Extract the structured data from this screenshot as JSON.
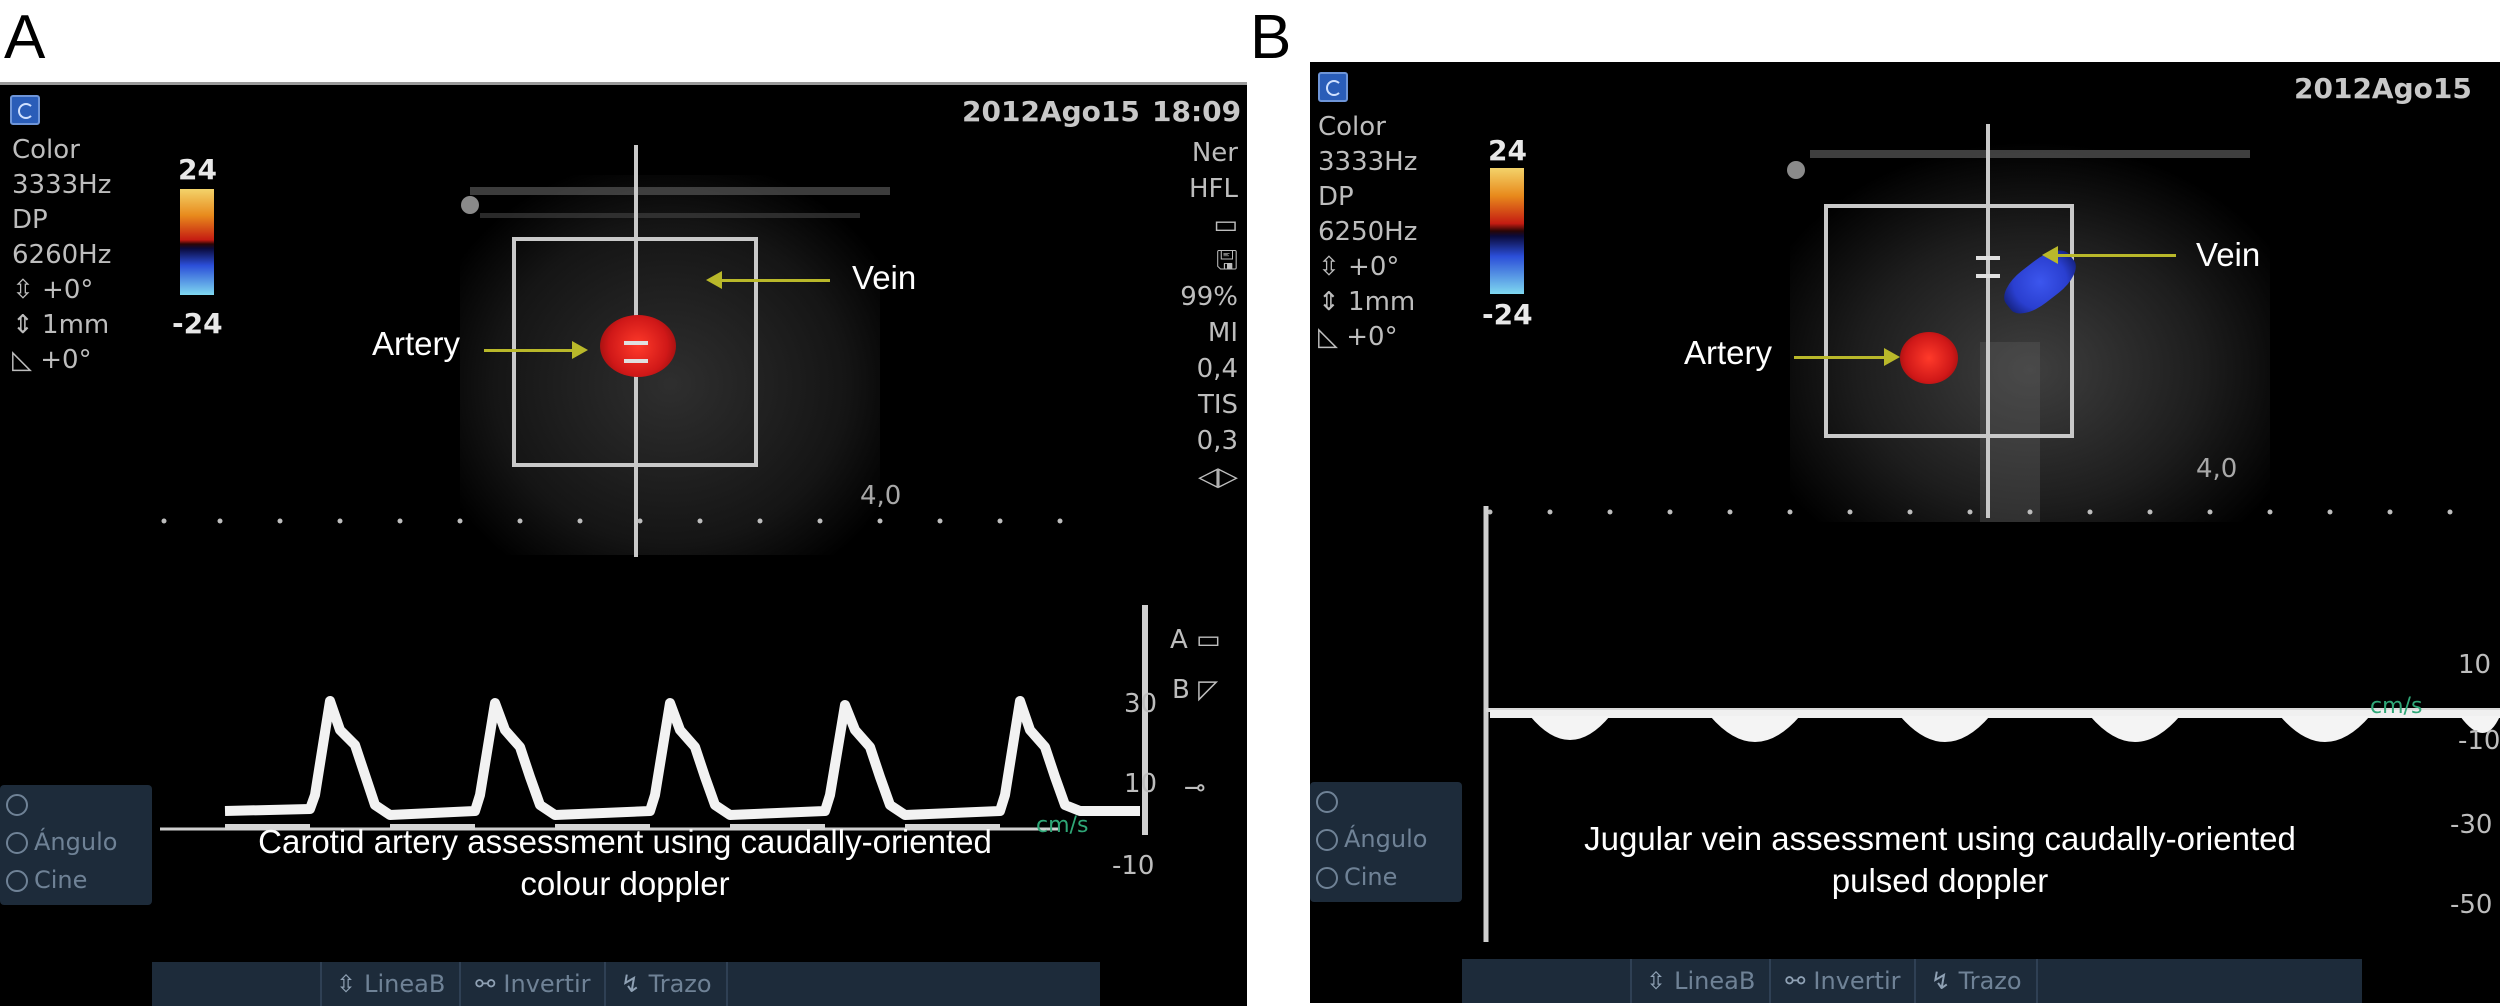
{
  "panels": [
    {
      "letter": "A",
      "date": "2012Ago15",
      "time": "18:09",
      "settings": [
        "Color",
        "3333Hz",
        "DP",
        "6260Hz",
        "⇳ +0°",
        "⇕ 1mm",
        "◺ +0°"
      ],
      "scale_max": "24",
      "scale_min": "-24",
      "right_info": [
        "Ner",
        "HFL",
        "▭",
        "🖫",
        "99%",
        "MI",
        "0,4",
        "TIS",
        "0,3",
        "◁▷"
      ],
      "depth": "4,0",
      "label_artery": "Artery",
      "label_vein": "Vein",
      "velocity_ticks": [
        "30",
        "10",
        "-10"
      ],
      "velocity_unit": "cm/s",
      "side_icons": [
        "A ▭",
        "B ◸",
        "⊸"
      ],
      "menu": [
        "",
        "Ángulo",
        "Cine"
      ],
      "caption_line1": "Carotid artery assessment using caudally-oriented",
      "caption_line2": "colour doppler",
      "bottom_bar": [
        {
          "icon": "⇳",
          "label": "LineaB"
        },
        {
          "icon": "⚯",
          "label": "Invertir"
        },
        {
          "icon": "↯",
          "label": "Trazo"
        }
      ]
    },
    {
      "letter": "B",
      "date": "2012Ago15",
      "settings": [
        "Color",
        "3333Hz",
        "DP",
        "6250Hz",
        "⇳ +0°",
        "⇕ 1mm",
        "◺ +0°"
      ],
      "scale_max": "24",
      "scale_min": "-24",
      "depth": "4,0",
      "label_artery": "Artery",
      "label_vein": "Vein",
      "velocity_ticks": [
        "10",
        "-10",
        "-30",
        "-50"
      ],
      "velocity_unit": "cm/s",
      "menu": [
        "",
        "Ángulo",
        "Cine"
      ],
      "caption_line1": "Jugular vein assessment using caudally-oriented",
      "caption_line2": "pulsed doppler",
      "bottom_bar": [
        {
          "icon": "⇳",
          "label": "LineaB"
        },
        {
          "icon": "⚯",
          "label": "Invertir"
        },
        {
          "icon": "↯",
          "label": "Trazo"
        }
      ]
    }
  ],
  "colors": {
    "screen_background": "#000000",
    "annotation_arrow": "#b9b82a",
    "artery_flow": "#d01818",
    "vein_flow": "#2a3fd0",
    "unit_text": "#2fa777",
    "menu_background": "#1d2b3a"
  }
}
